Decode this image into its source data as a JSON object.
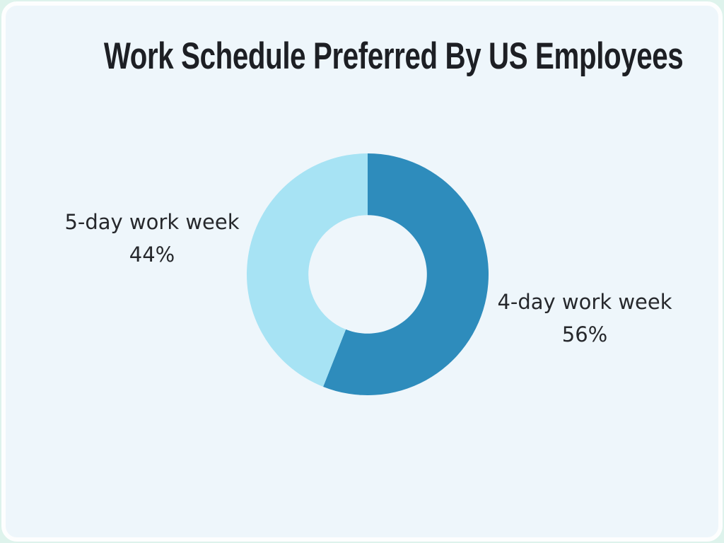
{
  "page": {
    "outer_background": "#def3ec",
    "card_background": "#eef6fb",
    "card_border_color": "#fdfefe"
  },
  "title": "Work Schedule Preferred By US Employees",
  "chart_data": {
    "type": "pie",
    "subtype": "donut",
    "title": "Work Schedule Preferred By US Employees",
    "start_angle_deg": 0,
    "direction": "clockwise",
    "inner_radius_ratio": 0.49,
    "legend_position": "none",
    "grid": false,
    "slices": [
      {
        "label": "4-day work week",
        "value": 56,
        "display": "56%",
        "color": "#2e8cbc",
        "label_side": "right"
      },
      {
        "label": "5-day work week",
        "value": 44,
        "display": "44%",
        "color": "#a7e3f4",
        "label_side": "left"
      }
    ]
  }
}
